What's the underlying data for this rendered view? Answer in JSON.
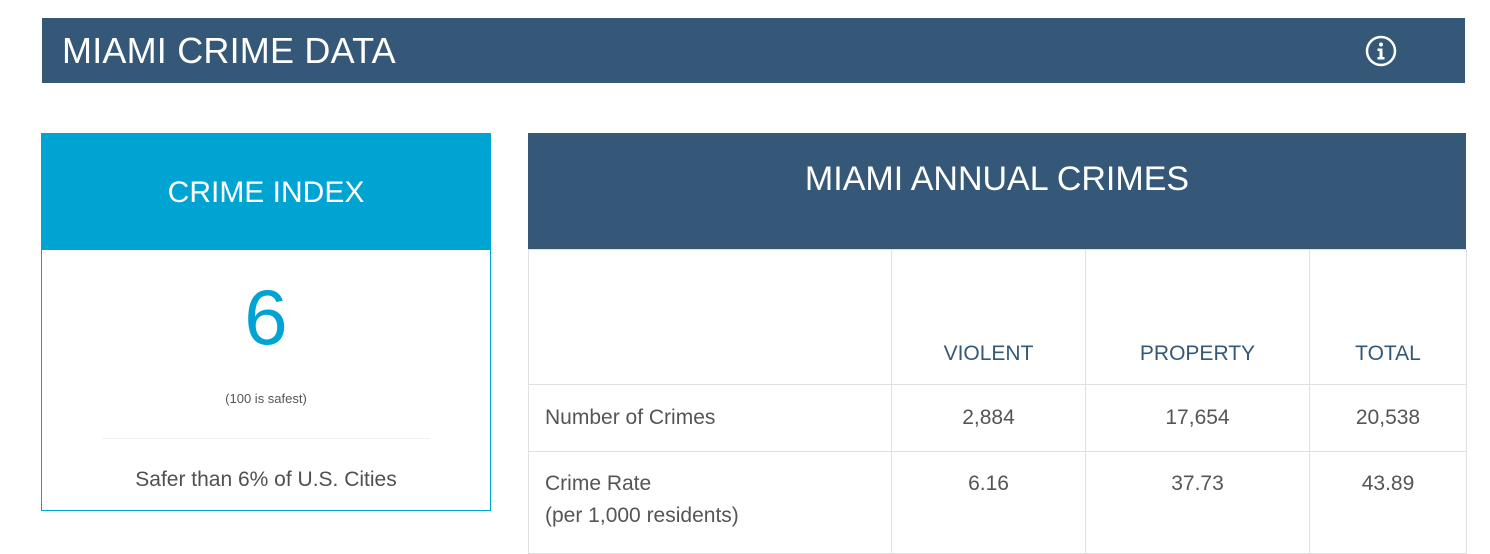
{
  "header": {
    "title": "MIAMI CRIME DATA",
    "info_icon": "info-icon",
    "background": "#355878"
  },
  "crime_index": {
    "header": "CRIME INDEX",
    "value": "6",
    "note": "(100 is safest)",
    "comparison": "Safer than 6% of U.S. Cities",
    "accent": "#00a4d3"
  },
  "annual_crimes": {
    "header": "MIAMI ANNUAL CRIMES",
    "columns": [
      "",
      "VIOLENT",
      "PROPERTY",
      "TOTAL"
    ],
    "rows": [
      {
        "label": "Number of Crimes",
        "sublabel": "",
        "values": [
          "2,884",
          "17,654",
          "20,538"
        ]
      },
      {
        "label": "Crime Rate",
        "sublabel": "(per 1,000 residents)",
        "values": [
          "6.16",
          "37.73",
          "43.89"
        ]
      }
    ]
  }
}
